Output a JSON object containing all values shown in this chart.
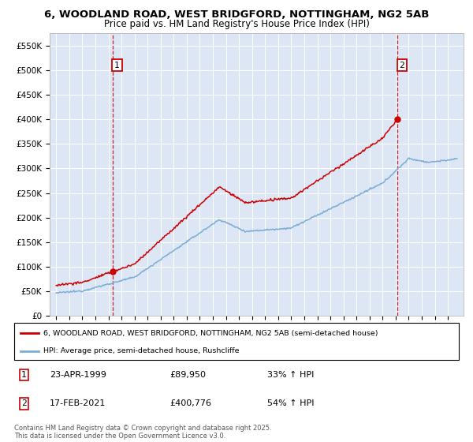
{
  "title_line1": "6, WOODLAND ROAD, WEST BRIDGFORD, NOTTINGHAM, NG2 5AB",
  "title_line2": "Price paid vs. HM Land Registry's House Price Index (HPI)",
  "sale1": {
    "date_num": 1999.31,
    "price": 89950,
    "label": "1",
    "pct": "33% ↑ HPI",
    "date_str": "23-APR-1999"
  },
  "sale2": {
    "date_num": 2021.12,
    "price": 400776,
    "label": "2",
    "pct": "54% ↑ HPI",
    "date_str": "17-FEB-2021"
  },
  "legend_line1": "6, WOODLAND ROAD, WEST BRIDGFORD, NOTTINGHAM, NG2 5AB (semi-detached house)",
  "legend_line2": "HPI: Average price, semi-detached house, Rushcliffe",
  "footnote": "Contains HM Land Registry data © Crown copyright and database right 2025.\nThis data is licensed under the Open Government Licence v3.0.",
  "red_color": "#cc0000",
  "blue_color": "#7aadd4",
  "plot_bg_color": "#dce6f5",
  "ylim_max": 575000,
  "ytick_vals": [
    0,
    50000,
    100000,
    150000,
    200000,
    250000,
    300000,
    350000,
    400000,
    450000,
    500000,
    550000
  ],
  "ytick_labels": [
    "£0",
    "£50K",
    "£100K",
    "£150K",
    "£200K",
    "£250K",
    "£300K",
    "£350K",
    "£400K",
    "£450K",
    "£500K",
    "£550K"
  ],
  "xlim_min": 1994.5,
  "xlim_max": 2026.2,
  "xtick_start": 1995,
  "xtick_end": 2026
}
